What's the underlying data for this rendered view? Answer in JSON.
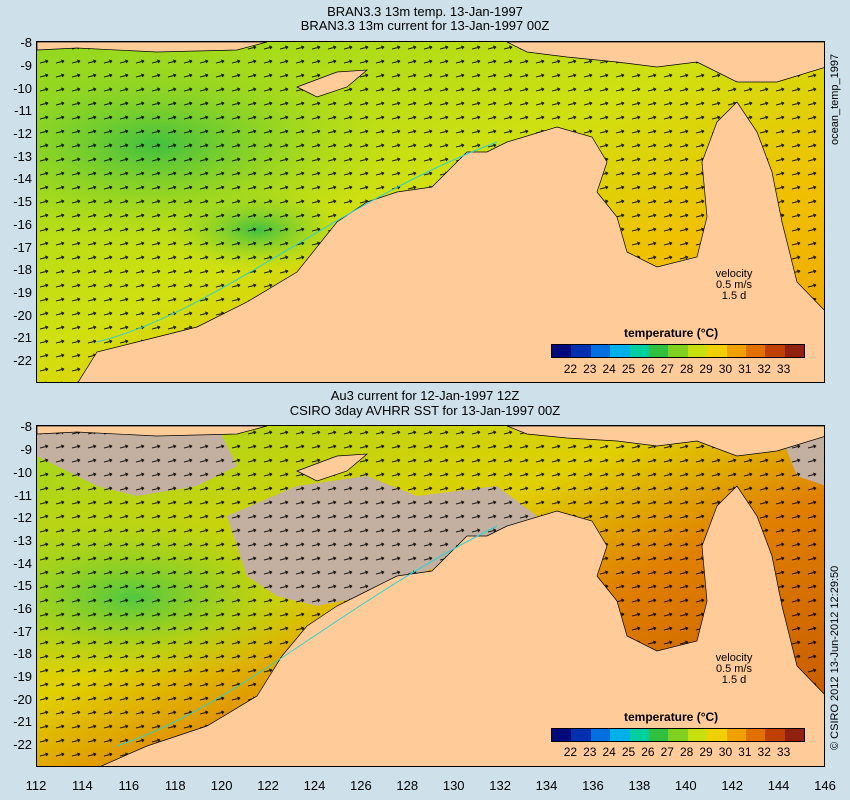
{
  "panel1": {
    "title_line1": "BRAN3.3 13m temp. 13-Jan-1997",
    "title_line2": "BRAN3.3 13m current for 13-Jan-1997 00Z",
    "side_label": "ocean_temp_1997"
  },
  "panel2": {
    "title_line1": "Au3 current for 12-Jan-1997 12Z",
    "title_line2": "CSIRO 3day AVHRR SST for 13-Jan-1997 00Z",
    "side_label": "© CSIRO 2012  13-Jun-2012 12:29:50"
  },
  "y_ticks": [
    "-8",
    "-9",
    "-10",
    "-11",
    "-12",
    "-13",
    "-14",
    "-15",
    "-16",
    "-17",
    "-18",
    "-19",
    "-20",
    "-21",
    "-22"
  ],
  "x_ticks": [
    "112",
    "114",
    "116",
    "118",
    "120",
    "122",
    "124",
    "126",
    "128",
    "130",
    "132",
    "134",
    "136",
    "138",
    "140",
    "142",
    "144",
    "146"
  ],
  "velocity_legend": {
    "line1": "velocity",
    "line2": "0.5 m/s",
    "line3": "1.5 d"
  },
  "colorbar": {
    "title": "temperature (°C)",
    "labels": [
      "22",
      "23",
      "24",
      "25",
      "26",
      "27",
      "28",
      "29",
      "30",
      "31",
      "32",
      "33"
    ],
    "colors": [
      "#000a7a",
      "#0030b0",
      "#0070e0",
      "#00b0e8",
      "#00d0a0",
      "#30c040",
      "#80d020",
      "#c8e010",
      "#f0d000",
      "#f0a000",
      "#e07000",
      "#c04000",
      "#902010"
    ]
  },
  "colors": {
    "land": "#ffcc99",
    "page_bg": "#cee0ea",
    "cloud_mask": "#c4b0a0",
    "coast_contour": "#30d0d0"
  }
}
